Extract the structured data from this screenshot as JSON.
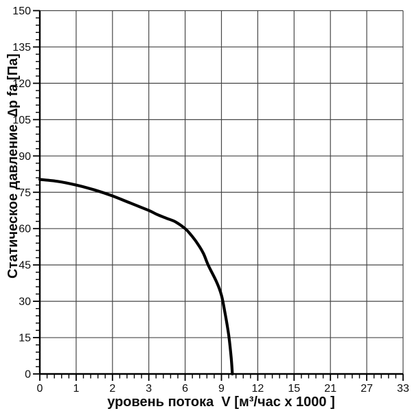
{
  "chart_data": {
    "type": "line",
    "title": "",
    "xlabel": "уровень потока  V [м³/час x 1000 ]",
    "ylabel": "Статическое давление  ∆p fa [Па]",
    "x_ticks": [
      0,
      1,
      2,
      3,
      6,
      9,
      12,
      15,
      21,
      27,
      33
    ],
    "x_tick_labels": [
      "0",
      "1",
      "2",
      "3",
      "6",
      "9",
      "12",
      "15",
      "21",
      "27",
      "33"
    ],
    "x_axis_type": "piecewise-nonlinear-equal-spacing",
    "x_minor_divisions_per_interval": 5,
    "y_ticks": [
      0,
      15,
      30,
      45,
      60,
      75,
      90,
      105,
      120,
      135,
      150
    ],
    "y_minor_step": 3,
    "ylim": [
      0,
      150
    ],
    "xlim": [
      0,
      33
    ],
    "grid": true,
    "legend": "none",
    "series": [
      {
        "name": "fan-static-pressure-curve",
        "color": "#000000",
        "points": [
          [
            0,
            80.3
          ],
          [
            0.5,
            79.5
          ],
          [
            1,
            78
          ],
          [
            1.5,
            76
          ],
          [
            2,
            73.5
          ],
          [
            2.5,
            70.5
          ],
          [
            3,
            67.5
          ],
          [
            3.7,
            65.8
          ],
          [
            4.5,
            64.2
          ],
          [
            5.2,
            62.8
          ],
          [
            6,
            60
          ],
          [
            6.5,
            57.3
          ],
          [
            7,
            54
          ],
          [
            7.5,
            49.9
          ],
          [
            7.9,
            45
          ],
          [
            8.6,
            38
          ],
          [
            9,
            32.5
          ],
          [
            9.3,
            25
          ],
          [
            9.6,
            16
          ],
          [
            9.8,
            7
          ],
          [
            9.9,
            0
          ]
        ]
      }
    ],
    "colors": {
      "background": "#ffffff",
      "grid": "#474747",
      "axis": "#000000",
      "curve": "#000000",
      "text": "#0d0d0d"
    }
  }
}
